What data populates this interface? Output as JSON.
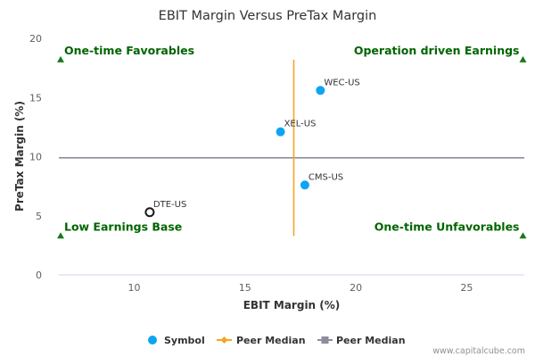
{
  "chart_data": {
    "type": "scatter",
    "title": "EBIT Margin Versus PreTax Margin",
    "xlabel": "EBIT Margin (%)",
    "ylabel": "PreTax Margin (%)",
    "xlim": [
      6.6,
      27.6
    ],
    "ylim": [
      0,
      20
    ],
    "xticks": [
      10,
      15,
      20,
      25
    ],
    "yticks": [
      0,
      5,
      10,
      15,
      20
    ],
    "points": [
      {
        "label": "WEC-US",
        "x": 18.4,
        "y": 15.6,
        "style": "filled"
      },
      {
        "label": "XEL-US",
        "x": 16.6,
        "y": 12.1,
        "style": "filled"
      },
      {
        "label": "CMS-US",
        "x": 17.7,
        "y": 7.6,
        "style": "filled"
      },
      {
        "label": "DTE-US",
        "x": 10.7,
        "y": 5.3,
        "style": "hollow"
      }
    ],
    "peer_median_x": 17.2,
    "peer_median_x_span": [
      3.3,
      18.2
    ],
    "peer_median_y": 9.9,
    "quadrant_labels": {
      "top_left": "One-time Favorables",
      "top_right": "Operation driven Earnings",
      "bottom_left": "Low Earnings Base",
      "bottom_right": "One-time Unfavorables"
    },
    "quadrant_marker_y": {
      "top": 18.2,
      "bottom": 3.3
    },
    "legend": [
      {
        "name": "Symbol",
        "kind": "dot"
      },
      {
        "name": "Peer Median",
        "kind": "line-orange"
      },
      {
        "name": "Peer Median",
        "kind": "line-gray"
      }
    ],
    "legend_position": "bottom-center"
  },
  "colors": {
    "point": "#0ea5f0",
    "hollow_stroke": "#1a1a1a",
    "median_x": "#f5a623",
    "median_y": "#8c8e9c",
    "quadrant_text": "#006400",
    "marker": "#1a7a1a",
    "axis_text": "#606060",
    "title": "#333333"
  },
  "watermark": "www.capitalcube.com"
}
